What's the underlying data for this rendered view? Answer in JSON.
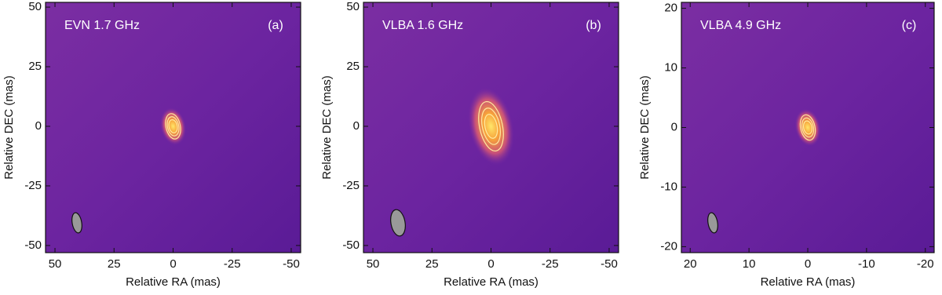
{
  "chart_data": [
    {
      "type": "image",
      "title": "EVN 1.7 GHz",
      "label": "(a)",
      "xlabel": "Relative RA (mas)",
      "ylabel": "Relative DEC (mas)",
      "xlim": [
        54,
        -54
      ],
      "ylim": [
        -53,
        52
      ],
      "xticks": [
        50,
        25,
        0,
        -25,
        -50
      ],
      "yticks": [
        50,
        25,
        0,
        -25,
        -50
      ]
    },
    {
      "type": "image",
      "title": "VLBA 1.6 GHz",
      "label": "(b)",
      "xlabel": "Relative RA (mas)",
      "ylabel": "Relative DEC (mas)",
      "xlim": [
        54,
        -54
      ],
      "ylim": [
        -53,
        52
      ],
      "xticks": [
        50,
        25,
        0,
        -25,
        -50
      ],
      "yticks": [
        50,
        25,
        0,
        -25,
        -50
      ]
    },
    {
      "type": "image",
      "title": "VLBA 4.9 GHz",
      "label": "(c)",
      "xlabel": "Relative RA (mas)",
      "ylabel": "Relative DEC (mas)",
      "xlim": [
        21.5,
        -21.5
      ],
      "ylim": [
        -21,
        21
      ],
      "xticks": [
        20,
        10,
        0,
        -10,
        -20
      ],
      "yticks": [
        20,
        10,
        0,
        -10,
        -20
      ]
    }
  ]
}
